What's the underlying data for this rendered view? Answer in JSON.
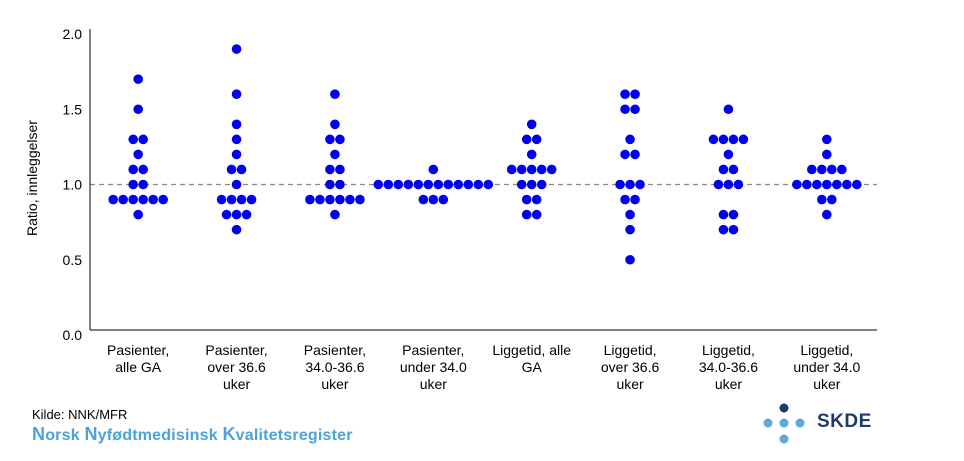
{
  "chart_data": {
    "type": "scatter",
    "style": "dot-plot",
    "title": "",
    "xlabel": "",
    "ylabel": "Ratio, innleggelser",
    "ylim": [
      0,
      2.0
    ],
    "yticks": [
      "0.0",
      "0.5",
      "1.0",
      "1.5",
      "2.0"
    ],
    "reference_line": 1.0,
    "dot_color": "#0000ee",
    "reference_color": "#888888",
    "categories": [
      [
        "Pasienter,",
        "alle GA"
      ],
      [
        "Pasienter,",
        "over 36.6",
        "uker"
      ],
      [
        "Pasienter,",
        "34.0-36.6",
        "uker"
      ],
      [
        "Pasienter,",
        "under 34.0",
        "uker"
      ],
      [
        "Liggetid, alle",
        "GA"
      ],
      [
        "Liggetid,",
        "over 36.6",
        "uker"
      ],
      [
        "Liggetid,",
        "34.0-36.6",
        "uker"
      ],
      [
        "Liggetid,",
        "under 34.0",
        "uker"
      ]
    ],
    "values": [
      [
        1.7,
        1.5,
        1.3,
        1.3,
        1.2,
        1.1,
        1.1,
        1.0,
        1.0,
        0.9,
        0.9,
        0.9,
        0.9,
        0.9,
        0.9,
        0.8
      ],
      [
        1.9,
        1.6,
        1.4,
        1.3,
        1.2,
        1.1,
        1.1,
        1.0,
        0.9,
        0.9,
        0.9,
        0.9,
        0.8,
        0.8,
        0.8,
        0.7
      ],
      [
        1.6,
        1.4,
        1.3,
        1.3,
        1.2,
        1.1,
        1.1,
        1.0,
        1.0,
        0.9,
        0.9,
        0.9,
        0.9,
        0.9,
        0.9,
        0.8
      ],
      [
        1.1,
        1.0,
        1.0,
        1.0,
        1.0,
        1.0,
        1.0,
        1.0,
        1.0,
        1.0,
        1.0,
        1.0,
        1.0,
        0.9,
        0.9,
        0.9
      ],
      [
        1.4,
        1.3,
        1.3,
        1.2,
        1.1,
        1.1,
        1.1,
        1.1,
        1.1,
        1.0,
        1.0,
        1.0,
        0.9,
        0.9,
        0.8,
        0.8
      ],
      [
        1.6,
        1.6,
        1.5,
        1.5,
        1.3,
        1.2,
        1.2,
        1.0,
        1.0,
        1.0,
        0.9,
        0.9,
        0.8,
        0.7,
        0.5
      ],
      [
        1.5,
        1.3,
        1.3,
        1.3,
        1.3,
        1.2,
        1.1,
        1.1,
        1.0,
        1.0,
        1.0,
        0.8,
        0.8,
        0.7,
        0.7
      ],
      [
        1.3,
        1.2,
        1.1,
        1.1,
        1.1,
        1.1,
        1.0,
        1.0,
        1.0,
        1.0,
        1.0,
        1.0,
        1.0,
        0.9,
        0.9,
        0.8
      ]
    ]
  },
  "footer": {
    "source": "Kilde: NNK/MFR",
    "registry_parts": [
      {
        "text": "N",
        "cap": true
      },
      {
        "text": "orsk ",
        "cap": false
      },
      {
        "text": "N",
        "cap": true
      },
      {
        "text": "yfødtmedisinsk ",
        "cap": false
      },
      {
        "text": "K",
        "cap": true
      },
      {
        "text": "valitetsregister",
        "cap": false
      }
    ],
    "logo_text": "SKDE",
    "logo_colors": {
      "dark": "#1f3a6b",
      "light": "#5fa8dc"
    }
  }
}
